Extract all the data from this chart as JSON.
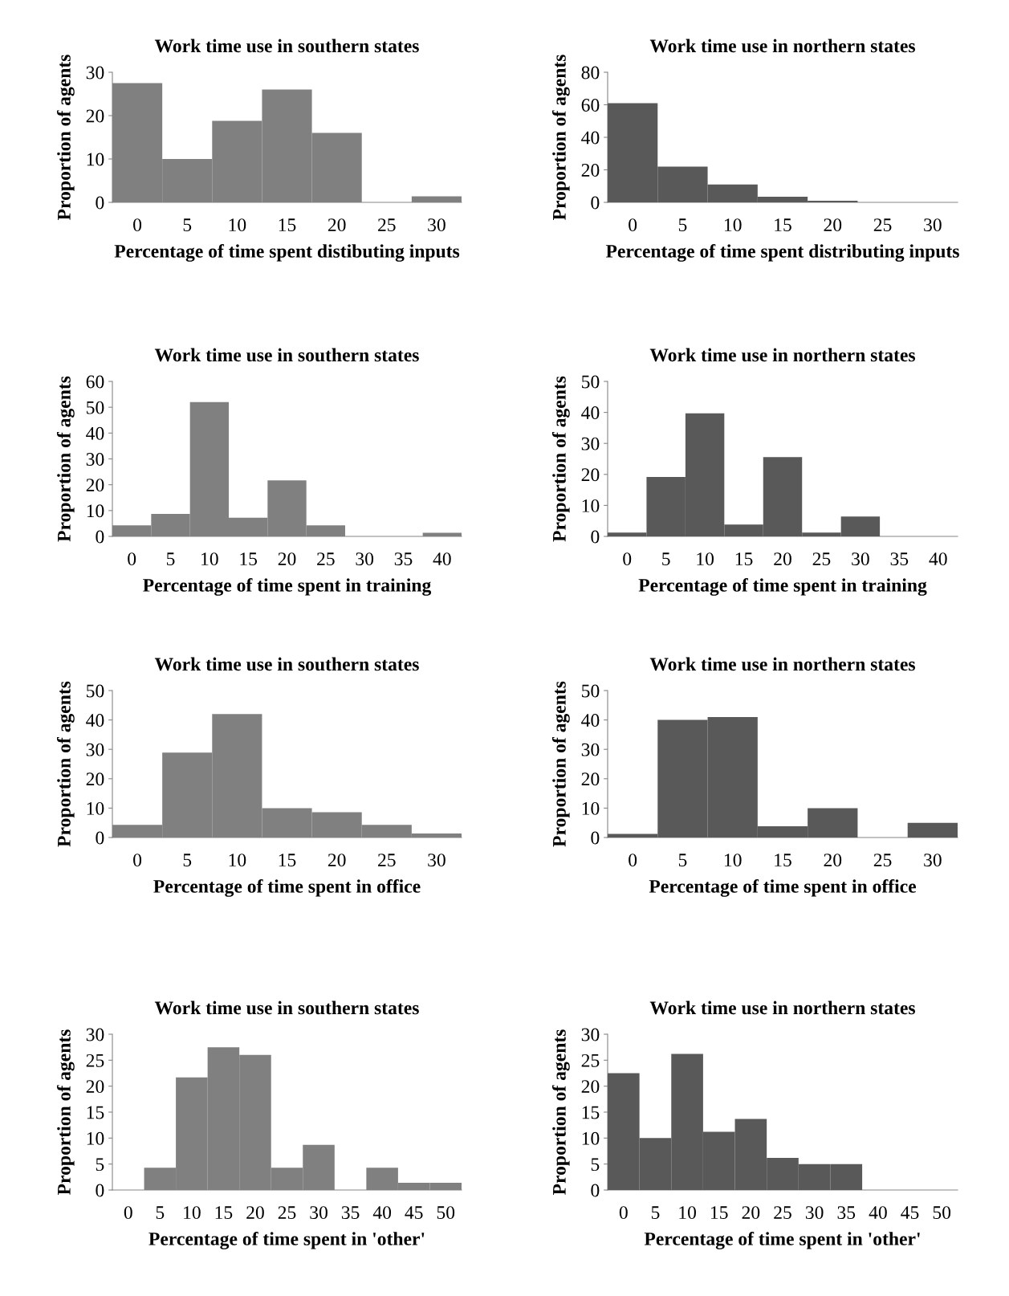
{
  "chart_data": [
    {
      "type": "bar",
      "title": "Work time use in southern states",
      "xlabel": "Percentage of time spent distibuting inputs",
      "ylabel": "Proportion of agents",
      "categories": [
        "0",
        "5",
        "10",
        "15",
        "20",
        "25",
        "30"
      ],
      "values": [
        27.5,
        10,
        18.8,
        26,
        16,
        0,
        1.4
      ],
      "color": "#808080",
      "ylim": [
        0,
        30
      ],
      "yticks": [
        0,
        10,
        20,
        30
      ],
      "grid": false,
      "legend": false
    },
    {
      "type": "bar",
      "title": "Work time use in northern states",
      "xlabel": "Percentage of time spent distributing inputs",
      "ylabel": "Proportion of agents",
      "categories": [
        "0",
        "5",
        "10",
        "15",
        "20",
        "25",
        "30"
      ],
      "values": [
        61,
        22,
        11,
        3.5,
        1,
        0,
        0
      ],
      "color": "#595959",
      "ylim": [
        0,
        80
      ],
      "yticks": [
        0,
        20,
        40,
        60,
        80
      ],
      "grid": false,
      "legend": false
    },
    {
      "type": "bar",
      "title": "Work time use in southern states",
      "xlabel": "Percentage of time spent in training",
      "ylabel": "Proportion of agents",
      "categories": [
        "0",
        "5",
        "10",
        "15",
        "20",
        "25",
        "30",
        "35",
        "40"
      ],
      "values": [
        4.3,
        8.7,
        52,
        7.2,
        21.7,
        4.3,
        0,
        0,
        1.4
      ],
      "color": "#808080",
      "ylim": [
        0,
        60
      ],
      "yticks": [
        0,
        10,
        20,
        30,
        40,
        50,
        60
      ],
      "grid": false,
      "legend": false
    },
    {
      "type": "bar",
      "title": "Work time use in northern states",
      "xlabel": "Percentage of time spent in training",
      "ylabel": "Proportion of agents",
      "categories": [
        "0",
        "5",
        "10",
        "15",
        "20",
        "25",
        "30",
        "35",
        "40"
      ],
      "values": [
        1.2,
        19.2,
        39.7,
        3.8,
        25.6,
        1.2,
        6.4,
        0,
        0
      ],
      "color": "#595959",
      "ylim": [
        0,
        50
      ],
      "yticks": [
        0,
        10,
        20,
        30,
        40,
        50
      ],
      "grid": false,
      "legend": false
    },
    {
      "type": "bar",
      "title": "Work time use in southern states",
      "xlabel": "Percentage of time spent in office",
      "ylabel": "Proportion of agents",
      "categories": [
        "0",
        "5",
        "10",
        "15",
        "20",
        "25",
        "30"
      ],
      "values": [
        4.3,
        28.9,
        42,
        10,
        8.6,
        4.3,
        1.4
      ],
      "color": "#808080",
      "ylim": [
        0,
        50
      ],
      "yticks": [
        0,
        10,
        20,
        30,
        40,
        50
      ],
      "grid": false,
      "legend": false
    },
    {
      "type": "bar",
      "title": "Work time use in northern states",
      "xlabel": "Percentage of time spent in office",
      "ylabel": "Proportion of agents",
      "categories": [
        "0",
        "5",
        "10",
        "15",
        "20",
        "25",
        "30"
      ],
      "values": [
        1.2,
        40,
        41,
        3.8,
        10,
        0,
        5
      ],
      "color": "#595959",
      "ylim": [
        0,
        50
      ],
      "yticks": [
        0,
        10,
        20,
        30,
        40,
        50
      ],
      "grid": false,
      "legend": false
    },
    {
      "type": "bar",
      "title": "Work time use in southern states",
      "xlabel": "Percentage of time spent in 'other'",
      "ylabel": "Proportion of agents",
      "categories": [
        "0",
        "5",
        "10",
        "15",
        "20",
        "25",
        "30",
        "35",
        "40",
        "45",
        "50"
      ],
      "values": [
        0,
        4.3,
        21.7,
        27.5,
        26,
        4.3,
        8.7,
        0,
        4.3,
        1.4,
        1.4
      ],
      "color": "#808080",
      "ylim": [
        0,
        30
      ],
      "yticks": [
        0,
        5,
        10,
        15,
        20,
        25,
        30
      ],
      "grid": false,
      "legend": false
    },
    {
      "type": "bar",
      "title": "Work time use in northern states",
      "xlabel": "Percentage of time spent in 'other'",
      "ylabel": "Proportion of agents",
      "categories": [
        "0",
        "5",
        "10",
        "15",
        "20",
        "25",
        "30",
        "35",
        "40",
        "45",
        "50"
      ],
      "values": [
        22.5,
        10,
        26.2,
        11.2,
        13.7,
        6.2,
        5,
        5,
        0,
        0,
        0
      ],
      "color": "#595959",
      "ylim": [
        0,
        30
      ],
      "yticks": [
        0,
        5,
        10,
        15,
        20,
        25,
        30
      ],
      "grid": false,
      "legend": false
    }
  ]
}
